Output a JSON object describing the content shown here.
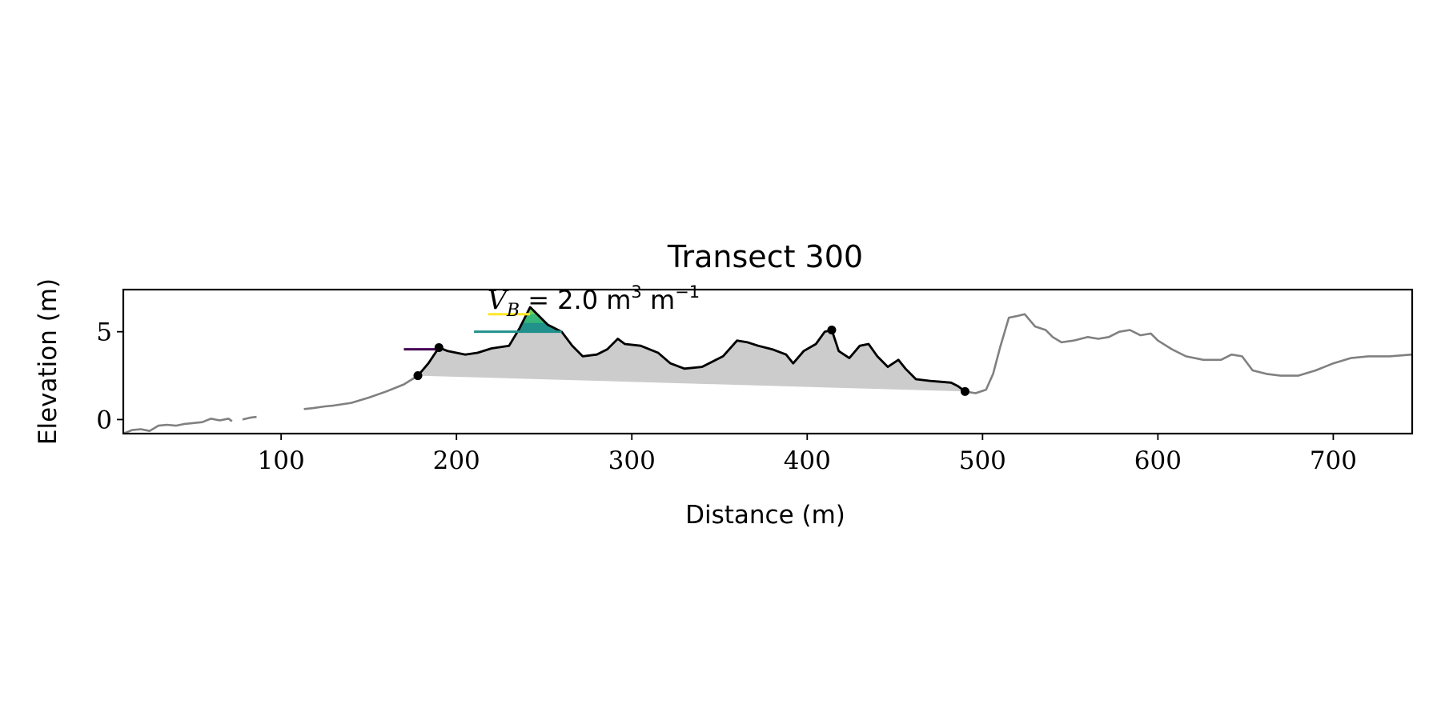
{
  "chart_data": {
    "type": "line",
    "title": "Transect 300",
    "xlabel": "Distance (m)",
    "ylabel": "Elevation (m)",
    "xlim": [
      10,
      745
    ],
    "ylim": [
      -0.8,
      7.4
    ],
    "xticks": [
      100,
      200,
      300,
      400,
      500,
      600,
      700
    ],
    "yticks": [
      0,
      5
    ],
    "grid": false,
    "annotation": {
      "symbol": "V",
      "subscript": "B",
      "text": " = 2.0 m",
      "sup1": "3",
      "unit2": " m",
      "sup2": "−1"
    },
    "series": [
      {
        "role": "full-profile",
        "color": "#808080",
        "segments": [
          [
            [
              10,
              -0.8
            ],
            [
              15,
              -0.6
            ],
            [
              20,
              -0.55
            ],
            [
              25,
              -0.65
            ],
            [
              30,
              -0.35
            ],
            [
              35,
              -0.3
            ],
            [
              40,
              -0.35
            ],
            [
              45,
              -0.25
            ],
            [
              50,
              -0.2
            ],
            [
              55,
              -0.15
            ],
            [
              60,
              0.05
            ],
            [
              65,
              -0.05
            ],
            [
              70,
              0.05
            ],
            [
              72,
              -0.1
            ]
          ],
          [
            [
              78,
              0.0
            ],
            [
              82,
              0.1
            ],
            [
              86,
              0.15
            ]
          ],
          [
            [
              113,
              0.6
            ],
            [
              118,
              0.65
            ],
            [
              125,
              0.75
            ],
            [
              130,
              0.8
            ],
            [
              140,
              0.95
            ],
            [
              150,
              1.25
            ],
            [
              160,
              1.6
            ],
            [
              170,
              2.0
            ],
            [
              178,
              2.5
            ],
            [
              184,
              3.2
            ],
            [
              190,
              4.1
            ],
            [
              195,
              3.9
            ],
            [
              205,
              3.7
            ],
            [
              212,
              3.8
            ],
            [
              220,
              4.05
            ],
            [
              230,
              4.2
            ],
            [
              236,
              5.2
            ],
            [
              242,
              6.4
            ],
            [
              246,
              6.0
            ],
            [
              252,
              5.4
            ],
            [
              260,
              5.0
            ],
            [
              266,
              4.2
            ],
            [
              272,
              3.6
            ],
            [
              280,
              3.7
            ],
            [
              286,
              4.0
            ],
            [
              292,
              4.6
            ],
            [
              296,
              4.3
            ],
            [
              305,
              4.2
            ],
            [
              315,
              3.8
            ],
            [
              322,
              3.2
            ],
            [
              330,
              2.9
            ],
            [
              340,
              3.0
            ],
            [
              346,
              3.3
            ],
            [
              352,
              3.6
            ],
            [
              360,
              4.5
            ],
            [
              366,
              4.4
            ],
            [
              372,
              4.2
            ],
            [
              380,
              4.0
            ],
            [
              388,
              3.7
            ],
            [
              392,
              3.2
            ],
            [
              398,
              3.9
            ],
            [
              405,
              4.3
            ],
            [
              410,
              5.0
            ],
            [
              414,
              5.1
            ],
            [
              418,
              3.9
            ],
            [
              424,
              3.5
            ],
            [
              430,
              4.2
            ],
            [
              435,
              4.3
            ],
            [
              440,
              3.6
            ],
            [
              446,
              3.0
            ],
            [
              452,
              3.4
            ],
            [
              456,
              2.9
            ],
            [
              462,
              2.3
            ],
            [
              470,
              2.2
            ],
            [
              476,
              2.15
            ],
            [
              482,
              2.1
            ],
            [
              486,
              1.9
            ],
            [
              490,
              1.6
            ],
            [
              496,
              1.5
            ],
            [
              502,
              1.7
            ],
            [
              506,
              2.6
            ],
            [
              510,
              4.1
            ],
            [
              515,
              5.8
            ],
            [
              520,
              5.9
            ],
            [
              524,
              6.0
            ],
            [
              530,
              5.3
            ],
            [
              536,
              5.1
            ],
            [
              540,
              4.7
            ],
            [
              545,
              4.4
            ],
            [
              552,
              4.5
            ],
            [
              560,
              4.7
            ],
            [
              566,
              4.6
            ],
            [
              572,
              4.7
            ],
            [
              578,
              5.0
            ],
            [
              584,
              5.1
            ],
            [
              590,
              4.8
            ],
            [
              596,
              4.9
            ],
            [
              600,
              4.5
            ],
            [
              608,
              4.0
            ],
            [
              616,
              3.6
            ],
            [
              626,
              3.4
            ],
            [
              636,
              3.4
            ],
            [
              642,
              3.7
            ],
            [
              648,
              3.6
            ],
            [
              654,
              2.8
            ],
            [
              662,
              2.6
            ],
            [
              670,
              2.5
            ],
            [
              680,
              2.5
            ],
            [
              690,
              2.8
            ],
            [
              700,
              3.2
            ],
            [
              710,
              3.5
            ],
            [
              720,
              3.6
            ],
            [
              732,
              3.6
            ],
            [
              745,
              3.7
            ]
          ]
        ]
      },
      {
        "role": "dune-profile",
        "color": "#000000",
        "points": [
          [
            178,
            2.5
          ],
          [
            184,
            3.2
          ],
          [
            190,
            4.1
          ],
          [
            195,
            3.9
          ],
          [
            205,
            3.7
          ],
          [
            212,
            3.8
          ],
          [
            220,
            4.05
          ],
          [
            230,
            4.2
          ],
          [
            236,
            5.2
          ],
          [
            242,
            6.4
          ],
          [
            246,
            6.0
          ],
          [
            252,
            5.4
          ],
          [
            260,
            5.0
          ],
          [
            266,
            4.2
          ],
          [
            272,
            3.6
          ],
          [
            280,
            3.7
          ],
          [
            286,
            4.0
          ],
          [
            292,
            4.6
          ],
          [
            296,
            4.3
          ],
          [
            305,
            4.2
          ],
          [
            315,
            3.8
          ],
          [
            322,
            3.2
          ],
          [
            330,
            2.9
          ],
          [
            340,
            3.0
          ],
          [
            346,
            3.3
          ],
          [
            352,
            3.6
          ],
          [
            360,
            4.5
          ],
          [
            366,
            4.4
          ],
          [
            372,
            4.2
          ],
          [
            380,
            4.0
          ],
          [
            388,
            3.7
          ],
          [
            392,
            3.2
          ],
          [
            398,
            3.9
          ],
          [
            405,
            4.3
          ],
          [
            410,
            5.0
          ],
          [
            414,
            5.1
          ],
          [
            418,
            3.9
          ],
          [
            424,
            3.5
          ],
          [
            430,
            4.2
          ],
          [
            435,
            4.3
          ],
          [
            440,
            3.6
          ],
          [
            446,
            3.0
          ],
          [
            452,
            3.4
          ],
          [
            456,
            2.9
          ],
          [
            462,
            2.3
          ],
          [
            470,
            2.2
          ],
          [
            476,
            2.15
          ],
          [
            482,
            2.1
          ],
          [
            486,
            1.9
          ],
          [
            490,
            1.6
          ]
        ]
      }
    ],
    "fill_base": [
      [
        178,
        2.5
      ],
      [
        490,
        1.6
      ]
    ],
    "fill_color": "#cccccc",
    "level_fills": [
      {
        "color": "#21918c",
        "level": 5.0
      },
      {
        "color": "#35b779",
        "level": 5.5
      },
      {
        "color": "#6ece58",
        "level": 6.0
      }
    ],
    "level_lines": [
      {
        "color": "#440154",
        "x": [
          170,
          190
        ],
        "y": 4.0
      },
      {
        "color": "#21918c",
        "x": [
          210,
          260
        ],
        "y": 5.0
      },
      {
        "color": "#fde725",
        "x": [
          218,
          242
        ],
        "y": 6.0
      }
    ],
    "markers": [
      [
        178,
        2.5
      ],
      [
        190,
        4.1
      ],
      [
        414,
        5.1
      ],
      [
        490,
        1.6
      ]
    ]
  }
}
